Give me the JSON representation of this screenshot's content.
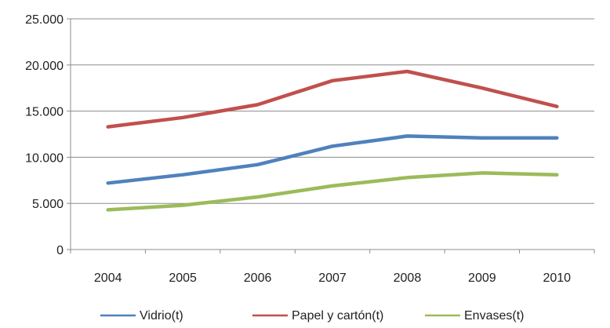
{
  "chart_data": {
    "type": "line",
    "title": "",
    "xlabel": "",
    "ylabel": "",
    "categories": [
      "2004",
      "2005",
      "2006",
      "2007",
      "2008",
      "2009",
      "2010"
    ],
    "ylim": [
      0,
      25000
    ],
    "y_ticks": [
      {
        "value": 0,
        "label": "0"
      },
      {
        "value": 5000,
        "label": "5.000"
      },
      {
        "value": 10000,
        "label": "10.000"
      },
      {
        "value": 15000,
        "label": "15.000"
      },
      {
        "value": 20000,
        "label": "20.000"
      },
      {
        "value": 25000,
        "label": "25.000"
      }
    ],
    "grid": true,
    "legend_position": "bottom",
    "series": [
      {
        "name": "Vidrio(t)",
        "color": "#4f81bd",
        "values": [
          7200,
          8100,
          9200,
          11200,
          12300,
          12100,
          12100
        ]
      },
      {
        "name": "Papel y cartón(t)",
        "color": "#c0504d",
        "values": [
          13300,
          14300,
          15700,
          18300,
          19300,
          17500,
          15500
        ]
      },
      {
        "name": "Envases(t)",
        "color": "#9bbb59",
        "values": [
          4300,
          4800,
          5700,
          6900,
          7800,
          8300,
          8100
        ]
      }
    ]
  }
}
